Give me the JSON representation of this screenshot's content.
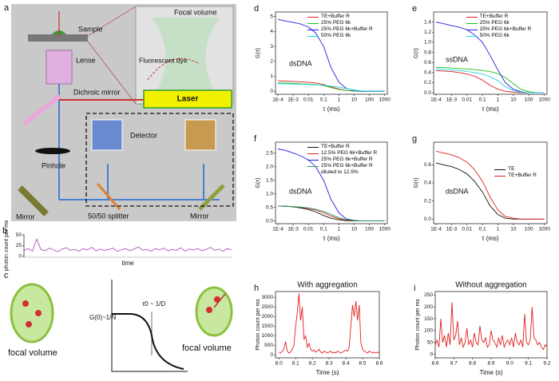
{
  "diagram": {
    "labels": {
      "a": "a",
      "b": "b",
      "c": "c"
    },
    "focal_volume": "Focal volume",
    "sample": "Sample",
    "dye": "Fluorescent dye",
    "lense": "Lense",
    "dichroic": "Dichroic mirror",
    "laser": "Laser",
    "pinhole": "Pinhole",
    "detector": "Detector",
    "mirror_left": "Mirror",
    "splitter": "50/50 splitter",
    "mirror_right": "Mirror",
    "c_left": "focal volume",
    "c_g0": "G(0)~1/N",
    "c_tau": "τ0 ~ 1/D",
    "c_right": "focal volume"
  },
  "chart_data": [
    {
      "type": "line",
      "label": "b",
      "ylabel": "photon count per ms",
      "xlabel": "time",
      "ylim": [
        -2,
        52
      ],
      "yticks": [
        0,
        25,
        50
      ],
      "series": [
        {
          "name": null,
          "color": "#b050c0",
          "values": [
            14,
            18,
            12,
            40,
            16,
            13,
            19,
            15,
            11,
            17,
            20,
            14,
            16,
            12,
            18,
            15,
            21,
            13,
            17,
            14,
            16,
            19,
            12,
            15,
            18,
            13,
            17,
            22,
            14,
            16,
            12,
            18,
            15,
            19,
            13,
            16,
            14,
            20,
            12,
            17,
            15,
            18,
            13,
            16,
            21,
            14,
            17,
            12,
            18,
            15
          ]
        }
      ]
    },
    {
      "type": "line",
      "label": "d",
      "xscale": "log",
      "annotation": "dsDNA",
      "xlabel": "τ (ms)",
      "ylabel": "G(τ)",
      "x": [
        0.0001,
        0.0003,
        0.001,
        0.003,
        0.01,
        0.03,
        0.1,
        0.3,
        1,
        3,
        10,
        30,
        100,
        300,
        1000
      ],
      "xlim": [
        7e-05,
        1500
      ],
      "xticks": [
        {
          "value": 0.0001,
          "label": "1E-4"
        },
        {
          "value": 0.001,
          "label": "1E-3"
        },
        0.01,
        0.1,
        1,
        10,
        100,
        1000
      ],
      "ylim": [
        -0.2,
        5.3
      ],
      "yticks": [
        0,
        1,
        2,
        3,
        4,
        5
      ],
      "series": [
        {
          "name": "TE+Buffer R",
          "color": "#e02020",
          "values": [
            0.7,
            0.68,
            0.65,
            0.63,
            0.6,
            0.55,
            0.45,
            0.3,
            0.15,
            0.05,
            0.02,
            0,
            0,
            0,
            0
          ]
        },
        {
          "name": "25% PEG 6k",
          "color": "#20c020",
          "values": [
            0.55,
            0.55,
            0.53,
            0.5,
            0.48,
            0.45,
            0.38,
            0.25,
            0.12,
            0.05,
            0.02,
            0,
            0,
            0,
            0
          ]
        },
        {
          "name": "25% PEG 6k+Buffer R",
          "color": "#2020e0",
          "values": [
            4.8,
            4.7,
            4.6,
            4.5,
            4.3,
            3.9,
            3.0,
            1.6,
            0.6,
            0.2,
            0.05,
            0,
            0,
            0,
            0
          ]
        },
        {
          "name": "50% PEG 6k",
          "color": "#20d0e0",
          "values": [
            0.5,
            0.5,
            0.48,
            0.47,
            0.45,
            0.43,
            0.4,
            0.35,
            0.28,
            0.18,
            0.08,
            0.02,
            0,
            0,
            0
          ]
        }
      ]
    },
    {
      "type": "line",
      "label": "e",
      "xscale": "log",
      "annotation": "ssDNA",
      "xlabel": "τ (ms)",
      "ylabel": "G(τ)",
      "x": [
        0.0001,
        0.0003,
        0.001,
        0.003,
        0.01,
        0.03,
        0.1,
        0.3,
        1,
        3,
        10,
        30,
        100,
        300,
        1000
      ],
      "xlim": [
        7e-05,
        1500
      ],
      "xticks": [
        {
          "value": 0.0001,
          "label": "1E-4"
        },
        {
          "value": 0.001,
          "label": "1E-3"
        },
        0.01,
        0.1,
        1,
        10,
        100,
        1000
      ],
      "ylim": [
        -0.03,
        1.6
      ],
      "yticks": [
        {
          "value": 0,
          "label": "0.0"
        },
        0.2,
        0.4,
        0.6,
        0.8,
        {
          "value": 1,
          "label": "1.0"
        },
        1.2,
        1.4
      ],
      "series": [
        {
          "name": "TE+Buffer R",
          "color": "#e02020",
          "values": [
            0.44,
            0.43,
            0.42,
            0.4,
            0.37,
            0.33,
            0.25,
            0.15,
            0.07,
            0.03,
            0.01,
            0,
            0,
            0,
            0
          ]
        },
        {
          "name": "25% PEG 6k",
          "color": "#20c020",
          "values": [
            0.5,
            0.5,
            0.49,
            0.48,
            0.47,
            0.46,
            0.44,
            0.42,
            0.38,
            0.3,
            0.18,
            0.07,
            0.02,
            0,
            0
          ]
        },
        {
          "name": "25% PEG 6k+Buffer R",
          "color": "#2020e0",
          "values": [
            1.4,
            1.37,
            1.33,
            1.3,
            1.25,
            1.15,
            1.0,
            0.75,
            0.45,
            0.2,
            0.07,
            0.02,
            0,
            0,
            0
          ]
        },
        {
          "name": "50% PEG 6k",
          "color": "#20d0e0",
          "values": [
            0.47,
            0.46,
            0.45,
            0.44,
            0.42,
            0.4,
            0.37,
            0.32,
            0.24,
            0.12,
            0.04,
            0.01,
            0,
            0,
            0
          ]
        }
      ]
    },
    {
      "type": "line",
      "label": "f",
      "xscale": "log",
      "annotation": "dsDNA",
      "xlabel": "τ (ms)",
      "ylabel": "G(τ)",
      "x": [
        0.0001,
        0.0003,
        0.001,
        0.003,
        0.01,
        0.03,
        0.1,
        0.3,
        1,
        3,
        10,
        30,
        100,
        300,
        1000
      ],
      "xlim": [
        7e-05,
        1500
      ],
      "xticks": [
        {
          "value": 0.0001,
          "label": "1E-4"
        },
        {
          "value": 0.001,
          "label": "1E-3"
        },
        0.01,
        0.1,
        1,
        10,
        100,
        1000
      ],
      "ylim": [
        -0.1,
        2.9
      ],
      "yticks": [
        {
          "value": 0,
          "label": "0.0"
        },
        0.5,
        {
          "value": 1,
          "label": "1.0"
        },
        1.5,
        {
          "value": 2,
          "label": "2.0"
        },
        2.5
      ],
      "series": [
        {
          "name": "TE+Buffer R",
          "color": "#111111",
          "values": [
            0.55,
            0.54,
            0.52,
            0.48,
            0.42,
            0.33,
            0.2,
            0.1,
            0.04,
            0.01,
            0,
            0,
            0,
            0,
            0
          ]
        },
        {
          "name": "12.5% PEG 6k+Buffer R",
          "color": "#e02020",
          "values": [
            0.55,
            0.54,
            0.53,
            0.5,
            0.46,
            0.4,
            0.3,
            0.18,
            0.08,
            0.03,
            0.01,
            0,
            0,
            0,
            0
          ]
        },
        {
          "name": "25% PEG 6k+Buffer R",
          "color": "#2020e0",
          "values": [
            2.65,
            2.6,
            2.5,
            2.4,
            2.25,
            2.0,
            1.5,
            0.8,
            0.3,
            0.08,
            0.02,
            0,
            0,
            0,
            0
          ]
        },
        {
          "name": "25% PEG 6k+Buffer R diluted to 12.5%",
          "color": "#20a060",
          "values": [
            0.55,
            0.54,
            0.53,
            0.51,
            0.48,
            0.43,
            0.35,
            0.24,
            0.12,
            0.05,
            0.02,
            0,
            0,
            0,
            0
          ]
        }
      ]
    },
    {
      "type": "line",
      "label": "g",
      "xscale": "log",
      "annotation": "dsDNA",
      "xlabel": "τ (ms)",
      "ylabel": "G(τ)",
      "x": [
        0.0001,
        0.0003,
        0.001,
        0.003,
        0.01,
        0.03,
        0.1,
        0.3,
        1,
        3,
        10,
        30,
        100,
        300,
        1000
      ],
      "xlim": [
        7e-05,
        1500
      ],
      "xticks": [
        {
          "value": 0.0001,
          "label": "1E-4"
        },
        {
          "value": 0.001,
          "label": "1E-3"
        },
        0.01,
        0.1,
        1,
        10,
        100,
        1000
      ],
      "ylim": [
        -0.05,
        0.85
      ],
      "yticks": [
        {
          "value": 0,
          "label": "0.0"
        },
        0.2,
        0.4,
        0.6
      ],
      "series": [
        {
          "name": "TE",
          "color": "#111111",
          "values": [
            0.62,
            0.6,
            0.58,
            0.55,
            0.5,
            0.42,
            0.3,
            0.15,
            0.05,
            0.01,
            0,
            0,
            0,
            0,
            0
          ]
        },
        {
          "name": "TE+Buffer R",
          "color": "#e02020",
          "values": [
            0.75,
            0.73,
            0.71,
            0.68,
            0.63,
            0.55,
            0.42,
            0.25,
            0.1,
            0.03,
            0.01,
            0,
            0,
            0,
            0
          ]
        }
      ]
    },
    {
      "type": "line",
      "label": "h",
      "title": "With aggregation",
      "xlabel": "Time (s)",
      "ylabel": "Photon count per ms",
      "x": [
        8.0,
        8.01,
        8.02,
        8.03,
        8.04,
        8.05,
        8.06,
        8.07,
        8.08,
        8.09,
        8.1,
        8.11,
        8.12,
        8.13,
        8.14,
        8.15,
        8.16,
        8.17,
        8.18,
        8.19,
        8.2,
        8.21,
        8.22,
        8.23,
        8.24,
        8.25,
        8.26,
        8.27,
        8.28,
        8.29,
        8.3,
        8.31,
        8.32,
        8.33,
        8.34,
        8.35,
        8.36,
        8.37,
        8.38,
        8.39,
        8.4,
        8.41,
        8.42,
        8.43,
        8.44,
        8.45,
        8.46,
        8.47,
        8.48,
        8.49,
        8.5,
        8.51,
        8.52,
        8.53,
        8.54,
        8.55,
        8.56,
        8.57,
        8.58,
        8.59,
        8.6
      ],
      "xlim": [
        7.98,
        8.6
      ],
      "xticks": [
        {
          "value": 8,
          "label": "8.0"
        },
        8.1,
        8.2,
        8.3,
        8.4,
        8.5,
        8.6
      ],
      "ylim": [
        -150,
        3300
      ],
      "yticks": [
        0,
        500,
        1000,
        1500,
        2000,
        2500,
        3000
      ],
      "series": [
        {
          "name": null,
          "color": "#e02020",
          "values": [
            150,
            100,
            200,
            300,
            700,
            200,
            100,
            150,
            300,
            500,
            1500,
            2200,
            3200,
            1800,
            2500,
            800,
            1000,
            400,
            600,
            300,
            200,
            250,
            150,
            200,
            300,
            150,
            100,
            200,
            150,
            100,
            150,
            200,
            100,
            150,
            100,
            200,
            150,
            100,
            150,
            200,
            250,
            200,
            400,
            1500,
            2600,
            2000,
            2800,
            1800,
            2600,
            600,
            300,
            200,
            150,
            100,
            200,
            150,
            100,
            150,
            100,
            150,
            100
          ]
        }
      ]
    },
    {
      "type": "line",
      "label": "i",
      "title": "Without aggregation",
      "xlabel": "Time (s)",
      "ylabel": "Photon count per ms",
      "x": [
        8.6,
        8.61,
        8.62,
        8.63,
        8.64,
        8.65,
        8.66,
        8.67,
        8.68,
        8.69,
        8.7,
        8.71,
        8.72,
        8.73,
        8.74,
        8.75,
        8.76,
        8.77,
        8.78,
        8.79,
        8.8,
        8.81,
        8.82,
        8.83,
        8.84,
        8.85,
        8.86,
        8.87,
        8.88,
        8.89,
        8.9,
        8.91,
        8.92,
        8.93,
        8.94,
        8.95,
        8.96,
        8.97,
        8.98,
        8.99,
        9.0,
        9.01,
        9.02,
        9.03,
        9.04,
        9.05,
        9.06,
        9.07,
        9.08,
        9.09,
        9.1,
        9.11,
        9.12,
        9.13,
        9.14,
        9.15,
        9.16,
        9.17,
        9.18,
        9.19,
        9.2
      ],
      "xlim": [
        8.6,
        9.2
      ],
      "xticks": [
        8.6,
        8.7,
        8.8,
        8.9,
        {
          "value": 9,
          "label": "9.0"
        },
        9.1,
        9.2
      ],
      "ylim": [
        -15,
        265
      ],
      "yticks": [
        0,
        50,
        100,
        150,
        200,
        250
      ],
      "series": [
        {
          "name": null,
          "color": "#e02020",
          "values": [
            40,
            60,
            30,
            150,
            50,
            80,
            30,
            90,
            40,
            220,
            60,
            80,
            140,
            40,
            70,
            30,
            50,
            110,
            40,
            60,
            30,
            90,
            50,
            40,
            120,
            60,
            50,
            70,
            30,
            40,
            100,
            60,
            50,
            30,
            70,
            40,
            80,
            30,
            50,
            60,
            40,
            70,
            30,
            90,
            50,
            40,
            60,
            30,
            170,
            50,
            40,
            60,
            200,
            70,
            60,
            40,
            50,
            30,
            20,
            40,
            30
          ]
        }
      ]
    }
  ]
}
